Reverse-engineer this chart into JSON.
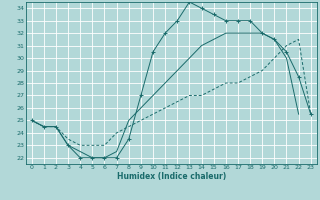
{
  "xlabel": "Humidex (Indice chaleur)",
  "xlim": [
    -0.5,
    23.5
  ],
  "ylim": [
    21.5,
    34.5
  ],
  "xticks": [
    0,
    1,
    2,
    3,
    4,
    5,
    6,
    7,
    8,
    9,
    10,
    11,
    12,
    13,
    14,
    15,
    16,
    17,
    18,
    19,
    20,
    21,
    22,
    23
  ],
  "yticks": [
    22,
    23,
    24,
    25,
    26,
    27,
    28,
    29,
    30,
    31,
    32,
    33,
    34
  ],
  "bg_color": "#b2d8d8",
  "grid_color": "#ffffff",
  "line_color": "#1a6b6b",
  "line1_x": [
    0,
    1,
    2,
    3,
    4,
    5,
    6,
    7,
    8,
    9,
    10,
    11,
    12,
    13,
    14,
    15,
    16,
    17,
    18,
    19,
    20,
    21,
    22,
    23
  ],
  "line1_y": [
    25,
    24.5,
    24.5,
    23.5,
    23,
    23,
    23,
    24,
    24.5,
    25,
    25.5,
    26,
    26.5,
    27,
    27,
    27.5,
    28,
    28,
    28.5,
    29,
    30,
    31,
    31.5,
    25.5
  ],
  "line2_x": [
    0,
    1,
    2,
    3,
    4,
    5,
    6,
    7,
    8,
    9,
    10,
    11,
    12,
    13,
    14,
    15,
    16,
    17,
    18,
    19,
    20,
    21,
    22,
    23
  ],
  "line2_y": [
    25,
    24.5,
    24.5,
    23,
    22,
    22,
    22,
    22,
    23.5,
    27,
    30.5,
    32,
    33,
    34.5,
    34,
    33.5,
    33,
    33,
    33,
    32,
    31.5,
    30.5,
    28.5,
    25.5
  ],
  "line3_x": [
    0,
    1,
    2,
    3,
    4,
    5,
    6,
    7,
    8,
    9,
    10,
    11,
    12,
    13,
    14,
    15,
    16,
    17,
    18,
    19,
    20,
    21,
    22,
    23
  ],
  "line3_y": [
    25,
    24.5,
    24.5,
    23,
    22.5,
    22,
    22,
    22.5,
    25,
    26,
    27,
    28,
    29,
    30,
    31,
    31.5,
    32,
    32,
    32,
    32,
    31.5,
    30,
    25.5,
    null
  ]
}
